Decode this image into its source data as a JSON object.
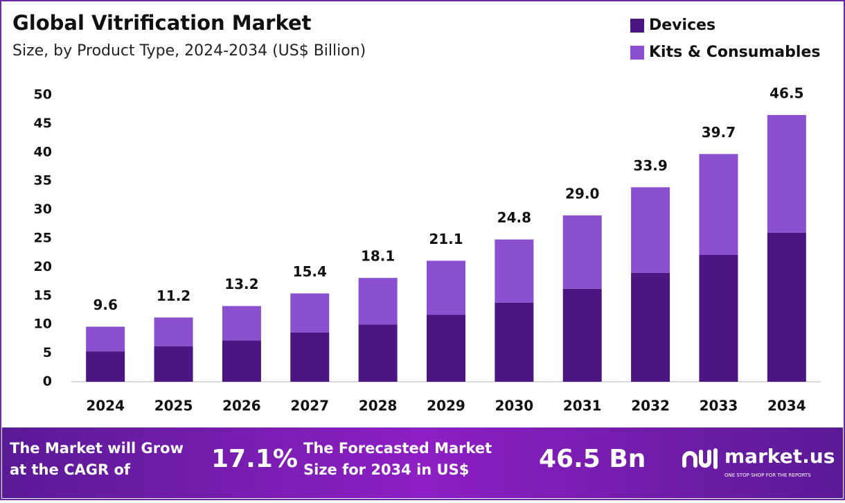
{
  "chart_data": {
    "type": "stacked_bar",
    "title": "Global Vitrification Market",
    "subtitle": "Size, by Product Type, 2024-2034 (US$ Billion)",
    "categories": [
      "2024",
      "2025",
      "2026",
      "2027",
      "2028",
      "2029",
      "2030",
      "2031",
      "2032",
      "2033",
      "2034"
    ],
    "series": [
      {
        "name": "Devices",
        "color": "#4b1681",
        "values": [
          5.3,
          6.2,
          7.2,
          8.6,
          10.0,
          11.7,
          13.8,
          16.2,
          19.0,
          22.1,
          26.0
        ]
      },
      {
        "name": "Kits & Consumables",
        "color": "#8a50cf",
        "values": [
          4.3,
          5.0,
          6.0,
          6.8,
          8.1,
          9.4,
          11.0,
          12.8,
          14.9,
          17.6,
          20.5
        ]
      }
    ],
    "total_labels": [
      "9.6",
      "11.2",
      "13.2",
      "15.4",
      "18.1",
      "21.1",
      "24.8",
      "29.0",
      "33.9",
      "39.7",
      "46.5"
    ],
    "ylim": [
      0,
      50
    ],
    "yticks": [
      0,
      5,
      10,
      15,
      20,
      25,
      30,
      35,
      40,
      45,
      50
    ],
    "grid": false,
    "legend": "top-right"
  },
  "footer": {
    "cagr_text": [
      "The Market will Grow",
      "at the CAGR of"
    ],
    "cagr_value": "17.1%",
    "forecast_text": [
      "The Forecasted Market",
      "Size for 2034 in US$"
    ],
    "forecast_value": "46.5 Bn",
    "logo": "market.us",
    "tagline": "ONE STOP SHOP FOR THE REPORTS"
  }
}
